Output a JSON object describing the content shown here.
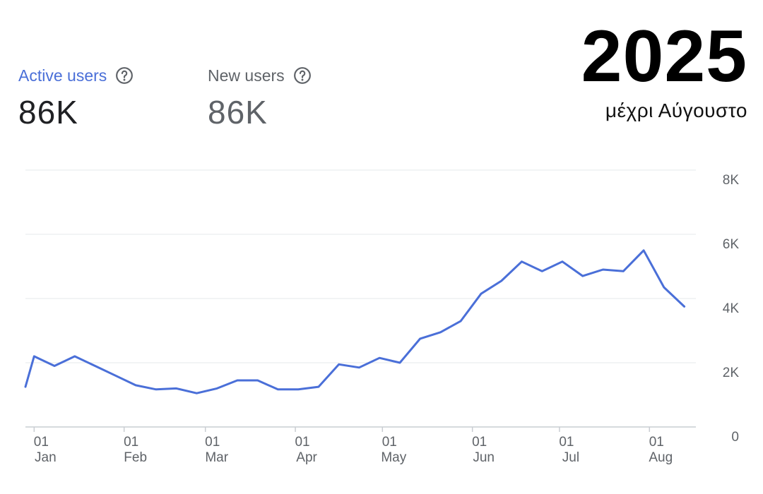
{
  "metrics": {
    "active_users": {
      "label": "Active users",
      "value": "86K",
      "icon": "help-icon",
      "color": "#4a6fd8"
    },
    "new_users": {
      "label": "New users",
      "value": "86K",
      "icon": "help-icon",
      "color": "#5f6368"
    }
  },
  "overlay": {
    "year": "2025",
    "subtitle": "μέχρι Αύγουστο"
  },
  "chart_data": {
    "type": "line",
    "title": "",
    "xlabel": "",
    "ylabel": "",
    "grid": true,
    "ylim": [
      0,
      8000
    ],
    "y_ticks": [
      {
        "value": 0,
        "label": "0"
      },
      {
        "value": 2000,
        "label": "2K"
      },
      {
        "value": 4000,
        "label": "4K"
      },
      {
        "value": 6000,
        "label": "6K"
      },
      {
        "value": 8000,
        "label": "8K"
      }
    ],
    "x_ticks": [
      {
        "date": "2025-01-01",
        "day": "01",
        "month": "Jan"
      },
      {
        "date": "2025-02-01",
        "day": "01",
        "month": "Feb"
      },
      {
        "date": "2025-03-01",
        "day": "01",
        "month": "Mar"
      },
      {
        "date": "2025-04-01",
        "day": "01",
        "month": "Apr"
      },
      {
        "date": "2025-05-01",
        "day": "01",
        "month": "May"
      },
      {
        "date": "2025-06-01",
        "day": "01",
        "month": "Jun"
      },
      {
        "date": "2025-07-01",
        "day": "01",
        "month": "Jul"
      },
      {
        "date": "2025-08-01",
        "day": "01",
        "month": "Aug"
      }
    ],
    "xlim": [
      "2024-12-29",
      "2025-08-17"
    ],
    "series": [
      {
        "color": "#4a6fd8",
        "x": [
          "2024-12-29",
          "2025-01-01",
          "2025-01-08",
          "2025-01-15",
          "2025-01-22",
          "2025-01-29",
          "2025-02-05",
          "2025-02-12",
          "2025-02-19",
          "2025-02-26",
          "2025-03-05",
          "2025-03-12",
          "2025-03-19",
          "2025-03-26",
          "2025-04-02",
          "2025-04-09",
          "2025-04-16",
          "2025-04-23",
          "2025-04-30",
          "2025-05-07",
          "2025-05-14",
          "2025-05-21",
          "2025-05-28",
          "2025-06-04",
          "2025-06-11",
          "2025-06-18",
          "2025-06-25",
          "2025-07-02",
          "2025-07-09",
          "2025-07-16",
          "2025-07-23",
          "2025-07-30",
          "2025-08-06",
          "2025-08-13"
        ],
        "values": [
          1250,
          2200,
          1900,
          2200,
          1900,
          1600,
          1300,
          1170,
          1200,
          1050,
          1200,
          1450,
          1450,
          1170,
          1170,
          1250,
          1950,
          1850,
          2150,
          2000,
          2750,
          2950,
          3300,
          4150,
          4550,
          5150,
          4850,
          5150,
          4700,
          4900,
          4850,
          5500,
          4350,
          3750
        ]
      }
    ]
  }
}
